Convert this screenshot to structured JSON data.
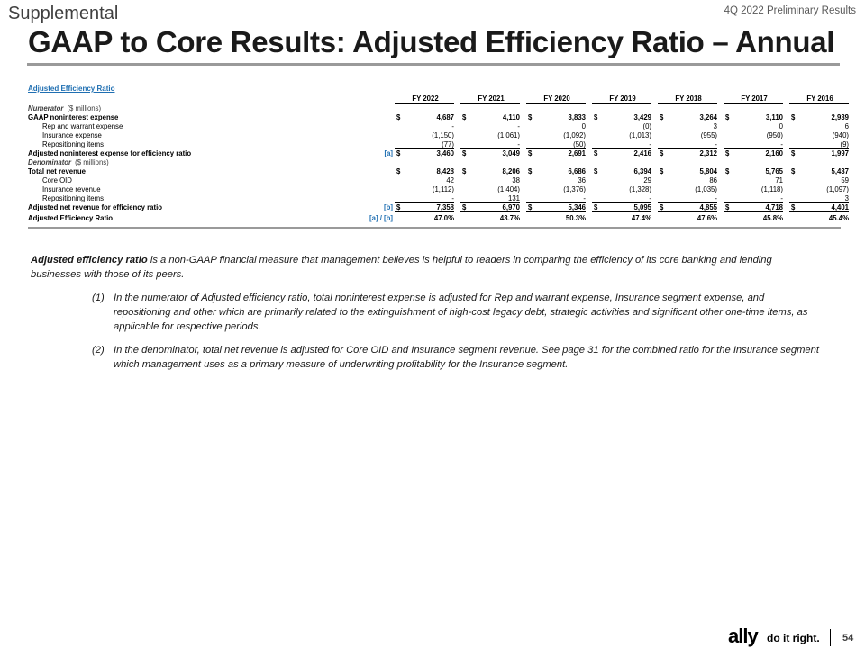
{
  "header": {
    "section": "Supplemental",
    "report": "4Q 2022 Preliminary Results",
    "title": "GAAP to Core Results: Adjusted Efficiency Ratio – Annual"
  },
  "table": {
    "title": "Adjusted Efficiency Ratio",
    "years": [
      "FY 2022",
      "FY 2021",
      "FY 2020",
      "FY 2019",
      "FY 2018",
      "FY 2017",
      "FY 2016"
    ],
    "numerator": {
      "name": "Numerator",
      "unit": "($ millions)"
    },
    "denominator": {
      "name": "Denominator",
      "unit": "($ millions)"
    },
    "rows": {
      "gaap_nie": {
        "label": "GAAP noninterest expense",
        "cur": "$",
        "ref": "",
        "values": [
          "4,687",
          "4,110",
          "3,833",
          "3,429",
          "3,264",
          "3,110",
          "2,939"
        ]
      },
      "rep_warrant": {
        "label": "Rep and warrant expense",
        "cur": "",
        "ref": "",
        "values": [
          "-",
          "-",
          "0",
          "(0)",
          "3",
          "0",
          "6"
        ]
      },
      "ins_expense": {
        "label": "Insurance expense",
        "cur": "",
        "ref": "",
        "values": [
          "(1,150)",
          "(1,061)",
          "(1,092)",
          "(1,013)",
          "(955)",
          "(950)",
          "(940)"
        ]
      },
      "repo_num": {
        "label": "Repositioning items",
        "cur": "",
        "ref": "",
        "values": [
          "(77)",
          "-",
          "(50)",
          "-",
          "-",
          "-",
          "(9)"
        ]
      },
      "adj_nie": {
        "label": "Adjusted noninterest expense for efficiency ratio",
        "cur": "$",
        "ref": "[a]",
        "values": [
          "3,460",
          "3,049",
          "2,691",
          "2,416",
          "2,312",
          "2,160",
          "1,997"
        ]
      },
      "total_rev": {
        "label": "Total net revenue",
        "cur": "$",
        "ref": "",
        "values": [
          "8,428",
          "8,206",
          "6,686",
          "6,394",
          "5,804",
          "5,765",
          "5,437"
        ]
      },
      "core_oid": {
        "label": "Core OID",
        "cur": "",
        "ref": "",
        "values": [
          "42",
          "38",
          "36",
          "29",
          "86",
          "71",
          "59"
        ]
      },
      "ins_rev": {
        "label": "Insurance revenue",
        "cur": "",
        "ref": "",
        "values": [
          "(1,112)",
          "(1,404)",
          "(1,376)",
          "(1,328)",
          "(1,035)",
          "(1,118)",
          "(1,097)"
        ]
      },
      "repo_den": {
        "label": "Repositioning items",
        "cur": "",
        "ref": "",
        "values": [
          "-",
          "131",
          "-",
          "-",
          "-",
          "-",
          "3"
        ]
      },
      "adj_rev": {
        "label": "Adjusted net revenue for efficiency ratio",
        "cur": "$",
        "ref": "[b]",
        "values": [
          "7,358",
          "6,970",
          "5,346",
          "5,095",
          "4,855",
          "4,718",
          "4,401"
        ]
      },
      "adj_ratio": {
        "label": "Adjusted Efficiency Ratio",
        "cur": "",
        "ref": "[a] / [b]",
        "values": [
          "47.0%",
          "43.7%",
          "50.3%",
          "47.4%",
          "47.6%",
          "45.8%",
          "45.4%"
        ]
      }
    }
  },
  "notes": {
    "intro_lead": "Adjusted efficiency ratio",
    "intro_rest": " is a non-GAAP financial measure that management believes is helpful to readers in comparing the efficiency of its core banking and lending businesses with those of its peers.",
    "footnotes": [
      {
        "num": "(1)",
        "text": "In the numerator of Adjusted efficiency ratio, total noninterest expense is adjusted for Rep and warrant expense, Insurance segment expense, and repositioning and other which are primarily related to the extinguishment of high-cost legacy debt, strategic activities and significant other one-time items, as applicable for respective periods."
      },
      {
        "num": "(2)",
        "text": "In the denominator, total net revenue is adjusted for Core OID and Insurance segment revenue. See page 31 for the combined ratio for the Insurance segment which management uses as a primary measure of underwriting profitability for the Insurance segment."
      }
    ]
  },
  "footer": {
    "logo": "ally",
    "tagline": "do it right.",
    "page": "54"
  }
}
